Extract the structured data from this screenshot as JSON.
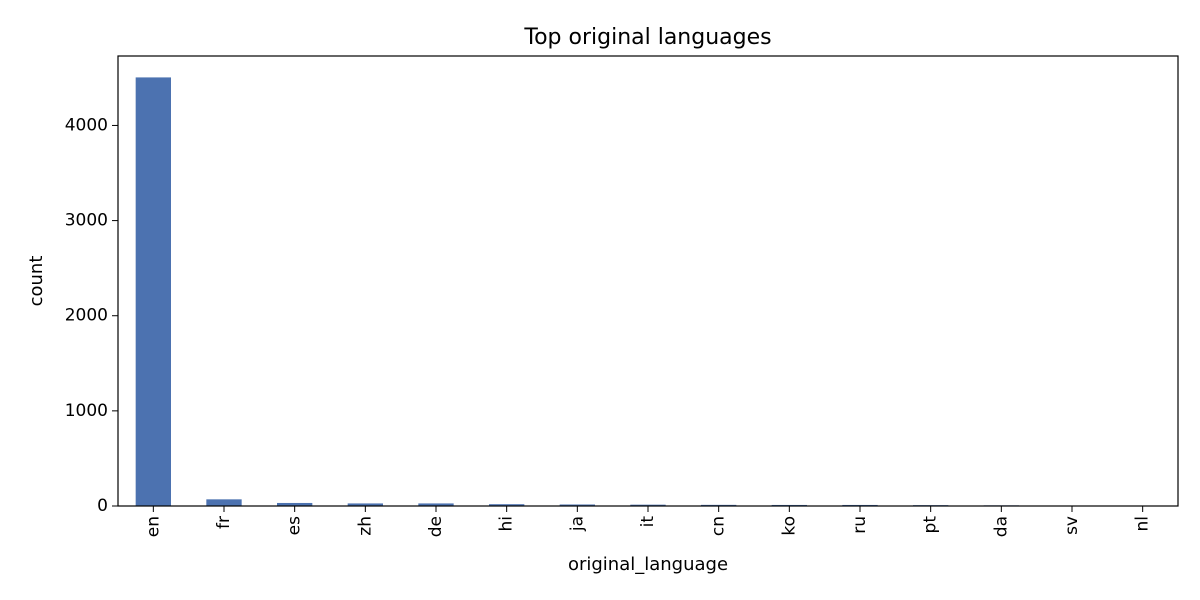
{
  "chart_data": {
    "type": "bar",
    "title": "Top original languages",
    "xlabel": "original_language",
    "ylabel": "count",
    "categories": [
      "en",
      "fr",
      "es",
      "zh",
      "de",
      "hi",
      "ja",
      "it",
      "cn",
      "ko",
      "ru",
      "pt",
      "da",
      "sv",
      "nl"
    ],
    "values": [
      4505,
      70,
      32,
      27,
      27,
      19,
      16,
      14,
      12,
      11,
      11,
      9,
      7,
      5,
      4
    ],
    "yticks": [
      0,
      1000,
      2000,
      3000,
      4000
    ],
    "ylim": [
      0,
      4730
    ],
    "bar_color": "#4c72b0",
    "grid": false,
    "legend": "none"
  }
}
